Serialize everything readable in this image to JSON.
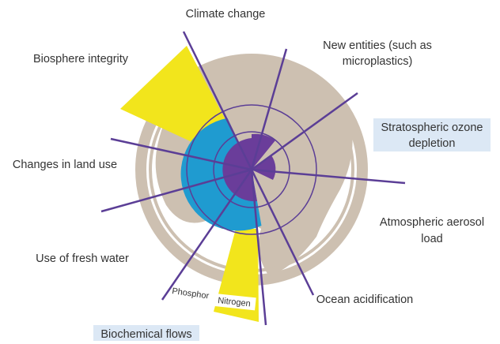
{
  "labels": {
    "climate_change": "Climate change",
    "new_entities": [
      "New entities (such as",
      "microplastics)"
    ],
    "stratospheric_ozone": [
      "Stratospheric ozone",
      "depletion"
    ],
    "atmospheric_aerosol": [
      "Atmospheric aerosol",
      "load"
    ],
    "ocean_acidification": "Ocean acidification",
    "biochemical_flows": "Biochemical flows",
    "phosphor": "Phosphor",
    "nitrogen": "Nitrogen",
    "fresh_water": "Use of fresh water",
    "land_use": "Changes in land use",
    "biosphere_integrity": "Biosphere integrity"
  }
}
